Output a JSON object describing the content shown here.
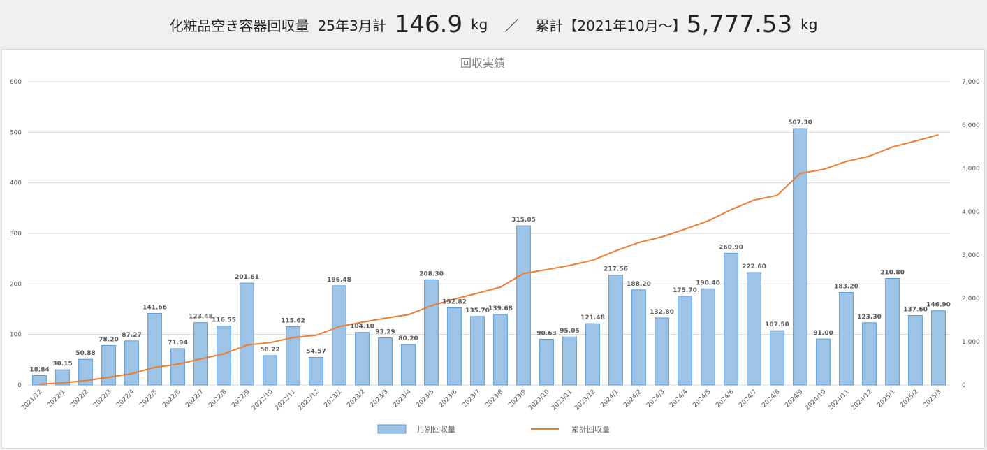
{
  "header": {
    "title": "化粧品空き容器回収量",
    "month_label": "25年3月計",
    "month_value": "146.9",
    "unit1": "kg",
    "separator": "／",
    "total_label": "累計【2021年10月～】",
    "total_value": "5,777.53",
    "unit2": "kg"
  },
  "colors": {
    "bar_fill": "#9dc3e6",
    "bar_stroke": "#5b9bd5",
    "line": "#ed7d31",
    "grid": "#d9d9d9",
    "text": "#595959"
  },
  "chart_data": {
    "type": "bar",
    "title": "回収実績",
    "categories": [
      "2021/12",
      "2022/1",
      "2022/2",
      "2022/3",
      "2022/4",
      "2022/5",
      "2022/6",
      "2022/7",
      "2022/8",
      "2022/9",
      "2022/10",
      "2022/11",
      "2022/12",
      "2023/1",
      "2023/2",
      "2023/3",
      "2023/4",
      "2023/5",
      "2023/6",
      "2023/7",
      "2023/8",
      "2023/9",
      "2023/10",
      "2023/11",
      "2023/12",
      "2024/1",
      "2024/2",
      "2024/3",
      "2024/4",
      "2024/5",
      "2024/6",
      "2024/7",
      "2024/8",
      "2024/9",
      "2024/10",
      "2024/11",
      "2024/12",
      "2025/1",
      "2025/2",
      "2025/3"
    ],
    "series": [
      {
        "name": "月別回収量",
        "type": "bar",
        "axis": "left",
        "values": [
          18.84,
          30.15,
          50.88,
          78.2,
          87.27,
          141.66,
          71.94,
          123.48,
          116.55,
          201.61,
          58.22,
          115.62,
          54.57,
          196.48,
          104.1,
          93.29,
          80.2,
          208.3,
          152.82,
          135.7,
          139.68,
          315.05,
          90.63,
          95.05,
          121.48,
          217.56,
          188.2,
          132.8,
          175.7,
          190.4,
          260.9,
          222.6,
          107.5,
          507.3,
          91.0,
          183.2,
          123.3,
          210.8,
          137.6,
          146.9
        ],
        "labels": [
          "18.84",
          "30.15",
          "50.88",
          "78.20",
          "87.27",
          "141.66",
          "71.94",
          "123.48",
          "116.55",
          "201.61",
          "58.22",
          "115.62",
          "54.57",
          "196.48",
          "104.10",
          "93.29",
          "80.20",
          "208.30",
          "152.82",
          "135.70",
          "139.68",
          "315.05",
          "90.63",
          "95.05",
          "121.48",
          "217.56",
          "188.20",
          "132.80",
          "175.70",
          "190.40",
          "260.90",
          "222.60",
          "107.50",
          "507.30",
          "91.00",
          "183.20",
          "123.30",
          "210.80",
          "137.60",
          "146.90"
        ]
      },
      {
        "name": "累計回収量",
        "type": "line",
        "axis": "right",
        "values": [
          19,
          49,
          100,
          178,
          265,
          407,
          479,
          603,
          719,
          921,
          979,
          1095,
          1149,
          1346,
          1450,
          1543,
          1623,
          1831,
          1984,
          2120,
          2260,
          2575,
          2665,
          2760,
          2882,
          3099,
          3288,
          3420,
          3596,
          3787,
          4047,
          4270,
          4378,
          4885,
          4976,
          5159,
          5282,
          5493,
          5631,
          5778
        ]
      }
    ],
    "yleft": {
      "min": 0,
      "max": 600,
      "ticks": [
        0,
        100,
        200,
        300,
        400,
        500,
        600
      ],
      "tick_labels": [
        "0",
        "100",
        "200",
        "300",
        "400",
        "500",
        "600"
      ]
    },
    "yright": {
      "min": 0,
      "max": 7000,
      "ticks": [
        0,
        1000,
        2000,
        3000,
        4000,
        5000,
        6000,
        7000
      ],
      "tick_labels": [
        "0",
        "1,000",
        "2,000",
        "3,000",
        "4,000",
        "5,000",
        "6,000",
        "7,000"
      ]
    },
    "grid": true,
    "legend_position": "bottom"
  }
}
